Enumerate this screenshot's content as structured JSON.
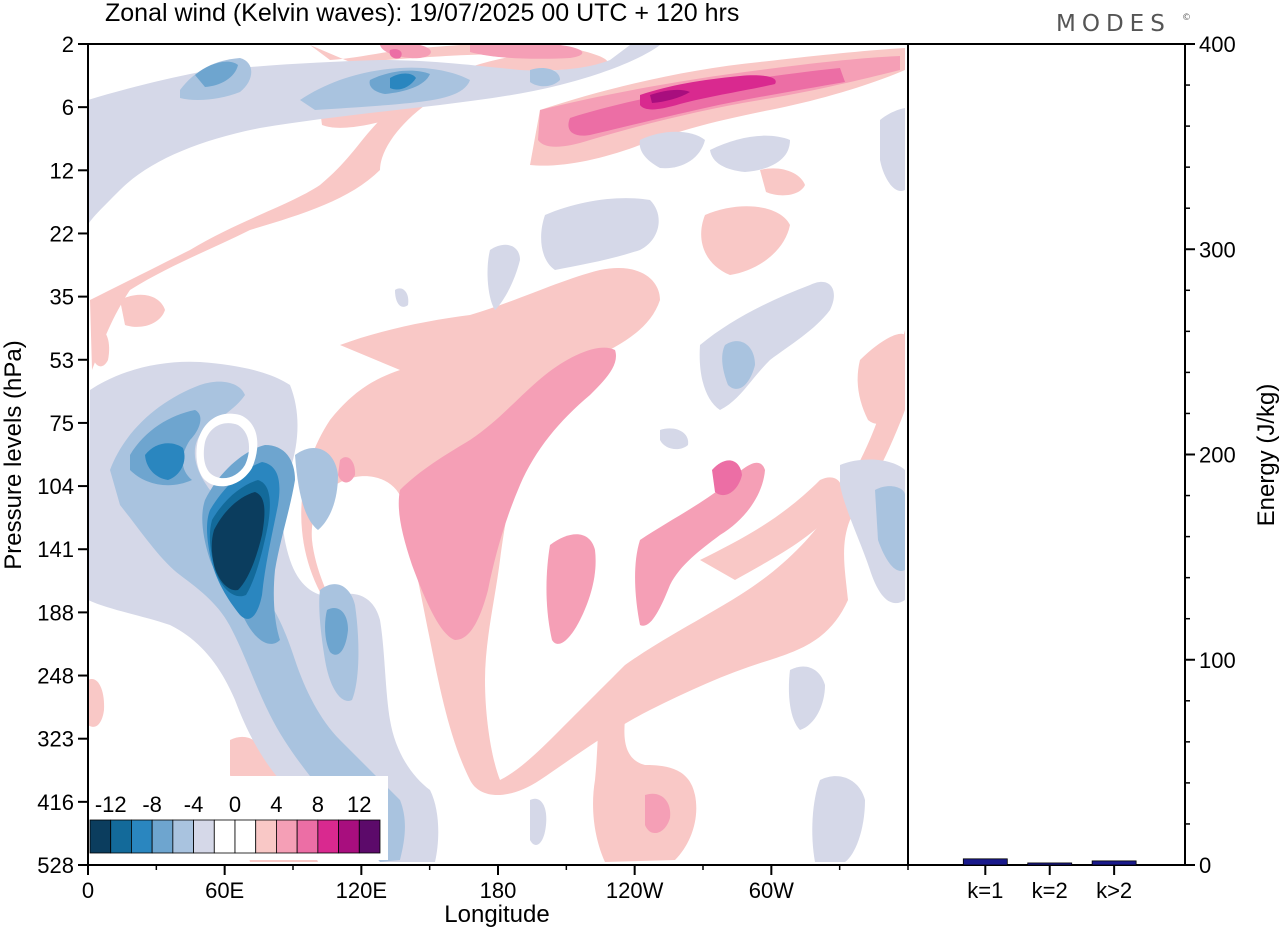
{
  "title": "Zonal wind (Kelvin waves):  19/07/2025  00 UTC  + 120 hrs",
  "brand": "MODES",
  "brand_mark": "©",
  "chart_data": [
    {
      "type": "heatmap",
      "name": "hovmoller",
      "title": "Zonal wind (Kelvin waves):  19/07/2025  00 UTC  + 120 hrs",
      "xlabel": "Longitude",
      "ylabel": "Pressure levels (hPa)",
      "x_ticks": [
        "0",
        "60E",
        "120E",
        "180",
        "120W",
        "60W"
      ],
      "y_ticks": [
        "2",
        "6",
        "12",
        "22",
        "35",
        "53",
        "75",
        "104",
        "141",
        "188",
        "248",
        "323",
        "416",
        "528"
      ],
      "colorbar": {
        "labels": [
          "-12",
          "-8",
          "-4",
          "0",
          "4",
          "8",
          "12"
        ],
        "colors": [
          "#0b3d5e",
          "#136a9a",
          "#2a86bf",
          "#6ea5cf",
          "#a9c3df",
          "#d5d8e8",
          "#ffffff",
          "#ffffff",
          "#f9c8c6",
          "#f59fb6",
          "#ec6ea5",
          "#d9298f",
          "#a80e7e",
          "#5c0a6a"
        ]
      }
    },
    {
      "type": "bar",
      "name": "energy",
      "categories": [
        "k=1",
        "k=2",
        "k>2"
      ],
      "values": [
        3,
        1,
        2
      ],
      "ylabel": "Energy (J/kg)",
      "ylim": [
        0,
        400
      ],
      "y_ticks": [
        "0",
        "100",
        "200",
        "300",
        "400"
      ],
      "bar_color": "#1a1a8c"
    }
  ]
}
